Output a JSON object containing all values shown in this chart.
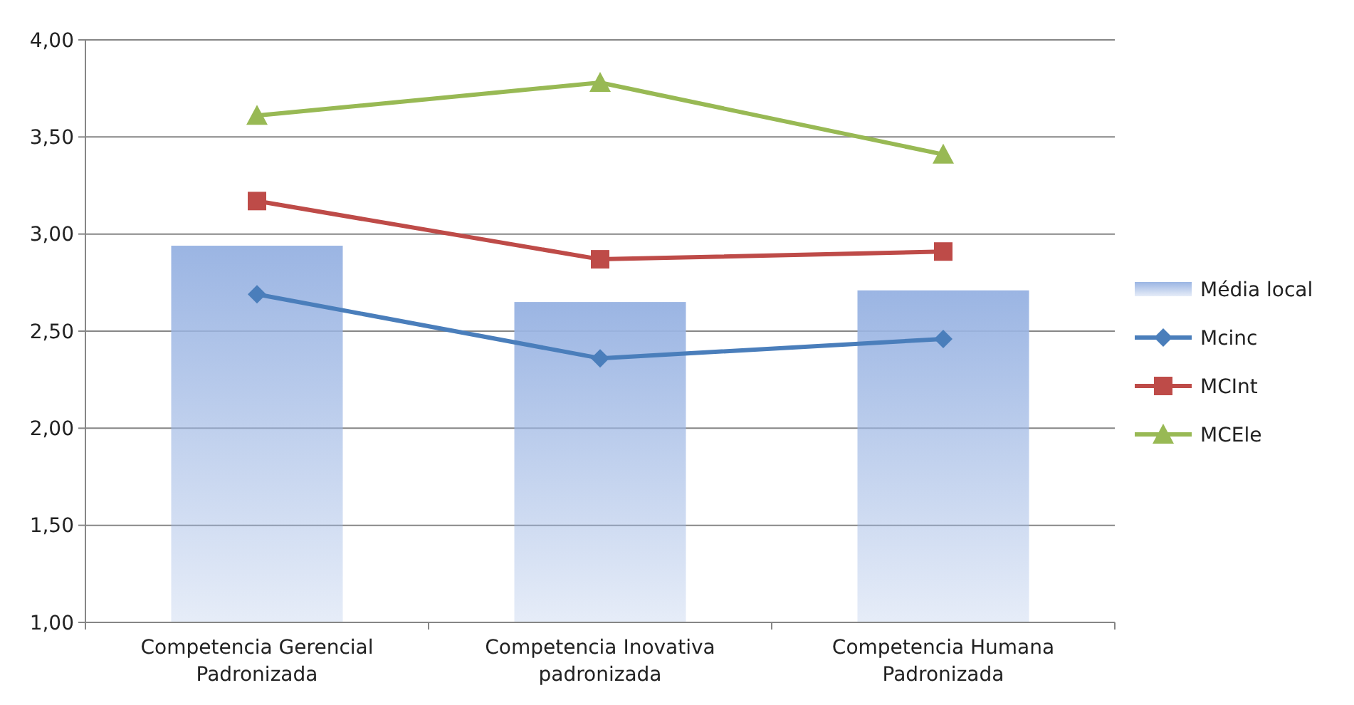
{
  "chart_data": {
    "type": "bar",
    "categories": [
      "Competencia Gerencial\nPadronizada",
      "Competencia Inovativa\npadronizada",
      "Competencia Humana\nPadronizada"
    ],
    "series": [
      {
        "name": "Média local",
        "color": "#9bb5e3",
        "values": [
          2.94,
          2.65,
          2.71
        ]
      },
      {
        "name": "Mcinc",
        "type": "line",
        "color": "#4a7ebb",
        "marker": "diamond",
        "values": [
          2.69,
          2.36,
          2.46
        ]
      },
      {
        "name": "MCInt",
        "type": "line",
        "color": "#be4b48",
        "marker": "square",
        "values": [
          3.17,
          2.87,
          2.91
        ]
      },
      {
        "name": "MCEle",
        "type": "line",
        "color": "#98b954",
        "marker": "triangle",
        "values": [
          3.61,
          3.78,
          3.41
        ]
      }
    ],
    "ylim": [
      1,
      4
    ],
    "yticks": [
      {
        "value": 1,
        "label": "1,00"
      },
      {
        "value": 1.5,
        "label": "1,50"
      },
      {
        "value": 2,
        "label": "2,00"
      },
      {
        "value": 2.5,
        "label": "2,50"
      },
      {
        "value": 3,
        "label": "3,00"
      },
      {
        "value": 3.5,
        "label": "3,50"
      },
      {
        "value": 4,
        "label": "4,00"
      }
    ],
    "grid": "y",
    "legend": "right",
    "line_style": "solid"
  }
}
